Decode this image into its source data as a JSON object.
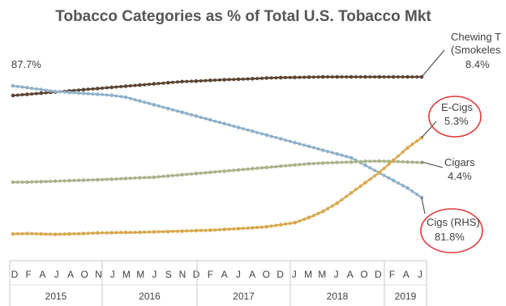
{
  "chart_data": {
    "type": "line",
    "title": "Tobacco Categories as % of Total U.S. Tobacco Mkt",
    "x_start": "2015-12",
    "x_end": "2019-06",
    "tick_labels": [
      "D",
      "F",
      "A",
      "J",
      "A",
      "O",
      "N",
      "J",
      "M",
      "M",
      "J",
      "S",
      "N",
      "D",
      "F",
      "A",
      "J",
      "A",
      "O",
      "D",
      "J",
      "M",
      "M",
      "J",
      "A",
      "O",
      "D",
      "F",
      "A",
      "J"
    ],
    "years": [
      "2015",
      "2016",
      "2017",
      "2018",
      "2019"
    ],
    "series": [
      {
        "name": "Chewing Tobacco (Smokeless)",
        "color": "#5b4433",
        "end_value_label": "8.4%",
        "values": [
          7.6,
          7.65,
          7.7,
          7.75,
          7.8,
          7.85,
          7.9,
          7.95,
          8.0,
          8.05,
          8.1,
          8.15,
          8.2,
          8.22,
          8.25,
          8.28,
          8.3,
          8.32,
          8.35,
          8.37,
          8.38,
          8.39,
          8.4,
          8.4,
          8.4,
          8.4,
          8.4,
          8.4,
          8.4,
          8.4
        ]
      },
      {
        "name": "Cigs (RHS)",
        "color": "#8fb1c9",
        "start_value_label": "87.7%",
        "end_value_label": "81.8%",
        "values": [
          87.7,
          87.6,
          87.5,
          87.4,
          87.35,
          87.3,
          87.25,
          87.2,
          87.1,
          86.9,
          86.7,
          86.5,
          86.3,
          86.1,
          85.9,
          85.7,
          85.5,
          85.3,
          85.1,
          84.9,
          84.7,
          84.5,
          84.3,
          84.1,
          83.9,
          83.5,
          83.1,
          82.7,
          82.3,
          81.8
        ]
      },
      {
        "name": "Cigars",
        "color": "#a8b48a",
        "end_value_label": "4.4%",
        "values": [
          3.6,
          3.6,
          3.62,
          3.64,
          3.66,
          3.68,
          3.7,
          3.72,
          3.75,
          3.78,
          3.8,
          3.85,
          3.9,
          3.95,
          4.0,
          4.05,
          4.1,
          4.15,
          4.2,
          4.25,
          4.3,
          4.35,
          4.38,
          4.4,
          4.42,
          4.45,
          4.46,
          4.45,
          4.42,
          4.4
        ]
      },
      {
        "name": "E-Cigs",
        "color": "#d9a84e",
        "end_value_label": "5.3%",
        "values": [
          0.6,
          0.62,
          0.6,
          0.58,
          0.6,
          0.62,
          0.65,
          0.66,
          0.67,
          0.68,
          0.7,
          0.72,
          0.74,
          0.76,
          0.78,
          0.82,
          0.86,
          0.9,
          0.95,
          1.05,
          1.15,
          1.4,
          1.7,
          2.1,
          2.6,
          3.1,
          3.6,
          4.2,
          4.8,
          5.3
        ]
      }
    ],
    "labels": {
      "chewing": [
        "Chewing T",
        "(Smokeles",
        "8.4%"
      ],
      "ecigs": [
        "E-Cigs",
        "5.3%"
      ],
      "cigars": [
        "Cigars",
        "4.4%"
      ],
      "cigs": [
        "Cigs (RHS)",
        "81.8%"
      ],
      "cigs_start": "87.7%"
    },
    "highlight_color": "#e23a3a"
  }
}
